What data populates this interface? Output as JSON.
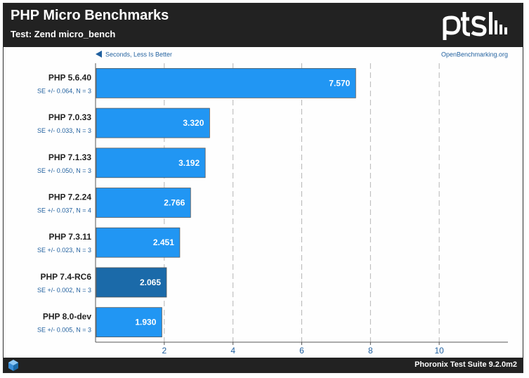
{
  "header": {
    "title": "PHP Micro Benchmarks",
    "subtitle": "Test: Zend micro_bench",
    "logo_text": "ptsh"
  },
  "footer": {
    "text": "Phoronix Test Suite 9.2.0m2",
    "icon": "phoronix-cube-icon"
  },
  "colors": {
    "bar": "#2196f3",
    "bar_highlight": "#1b6aa9",
    "grid": "#b5b5b5",
    "frame": "#222222",
    "text_blue": "#1f5f9e"
  },
  "chart_data": {
    "type": "bar",
    "orientation": "horizontal",
    "direction_note": "Seconds, Less Is Better",
    "source_note": "OpenBenchmarking.org",
    "categories": [
      "PHP 5.6.40",
      "PHP 7.0.33",
      "PHP 7.1.33",
      "PHP 7.2.24",
      "PHP 7.3.11",
      "PHP 7.4-RC6",
      "PHP 8.0-dev"
    ],
    "se_labels": [
      "SE +/- 0.064, N = 3",
      "SE +/- 0.033, N = 3",
      "SE +/- 0.050, N = 3",
      "SE +/- 0.037, N = 4",
      "SE +/- 0.023, N = 3",
      "SE +/- 0.002, N = 3",
      "SE +/- 0.005, N = 3"
    ],
    "values": [
      7.57,
      3.32,
      3.192,
      2.766,
      2.451,
      2.065,
      1.93
    ],
    "value_labels": [
      "7.570",
      "3.320",
      "3.192",
      "2.766",
      "2.451",
      "2.065",
      "1.930"
    ],
    "highlight_index": 5,
    "xlim": [
      0,
      12
    ],
    "xticks": [
      2,
      4,
      6,
      8,
      10
    ],
    "xlabel": "",
    "ylabel": "",
    "grid": true
  }
}
